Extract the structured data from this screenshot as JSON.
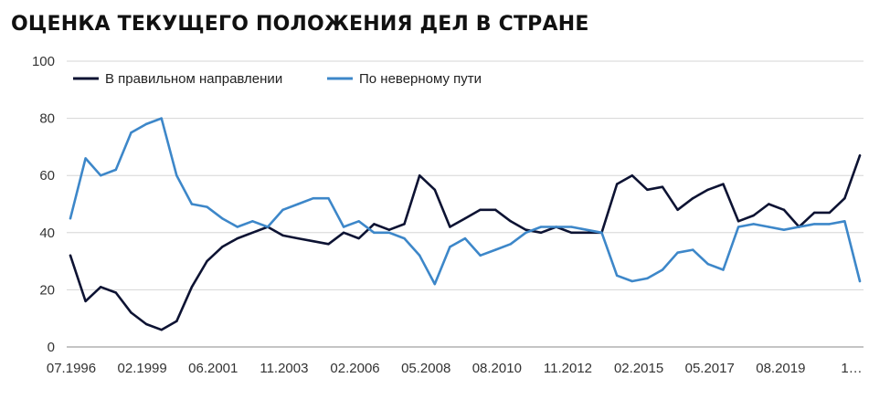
{
  "chart_data": {
    "type": "line",
    "title": "ОЦЕНКА ТЕКУЩЕГО ПОЛОЖЕНИЯ ДЕЛ В СТРАНЕ",
    "xlabel": "",
    "ylabel": "",
    "ylim": [
      0,
      100
    ],
    "yticks": [
      0,
      20,
      40,
      60,
      80,
      100
    ],
    "grid": true,
    "legend_position": "top-left",
    "x_tick_labels": [
      "07.1996",
      "02.1999",
      "06.2001",
      "11.2003",
      "02.2006",
      "05.2008",
      "08.2010",
      "11.2012",
      "02.2015",
      "05.2017",
      "08.2019",
      "1…"
    ],
    "x": [
      "07.1996",
      "01.1997",
      "07.1997",
      "01.1998",
      "07.1998",
      "01.1999",
      "07.1999",
      "01.2000",
      "07.2000",
      "01.2001",
      "07.2001",
      "01.2002",
      "07.2002",
      "01.2003",
      "07.2003",
      "01.2004",
      "07.2004",
      "01.2005",
      "07.2005",
      "01.2006",
      "07.2006",
      "01.2007",
      "07.2007",
      "01.2008",
      "07.2008",
      "01.2009",
      "07.2009",
      "01.2010",
      "07.2010",
      "01.2011",
      "07.2011",
      "01.2012",
      "07.2012",
      "01.2013",
      "07.2013",
      "01.2014",
      "07.2014",
      "01.2015",
      "07.2015",
      "01.2016",
      "07.2016",
      "01.2017",
      "07.2017",
      "01.2018",
      "07.2018",
      "01.2019",
      "07.2019",
      "01.2020",
      "07.2020",
      "01.2021",
      "07.2021",
      "01.2022",
      "04.2022"
    ],
    "series": [
      {
        "name": "В правильном направлении",
        "color": "#0d1333",
        "values": [
          32,
          16,
          21,
          19,
          12,
          8,
          6,
          9,
          21,
          30,
          35,
          38,
          40,
          42,
          39,
          38,
          37,
          36,
          40,
          38,
          43,
          41,
          43,
          60,
          55,
          42,
          45,
          48,
          48,
          44,
          41,
          40,
          42,
          40,
          40,
          40,
          57,
          60,
          55,
          56,
          48,
          52,
          55,
          57,
          44,
          46,
          50,
          48,
          42,
          47,
          47,
          52,
          67
        ]
      },
      {
        "name": "По неверному пути",
        "color": "#3d87c9",
        "values": [
          45,
          66,
          60,
          62,
          75,
          78,
          80,
          60,
          50,
          49,
          45,
          42,
          44,
          42,
          48,
          50,
          52,
          52,
          42,
          44,
          40,
          40,
          38,
          32,
          22,
          35,
          38,
          32,
          34,
          36,
          40,
          42,
          42,
          42,
          41,
          40,
          25,
          23,
          24,
          27,
          33,
          34,
          29,
          27,
          42,
          43,
          42,
          41,
          42,
          43,
          43,
          44,
          23
        ]
      }
    ]
  }
}
